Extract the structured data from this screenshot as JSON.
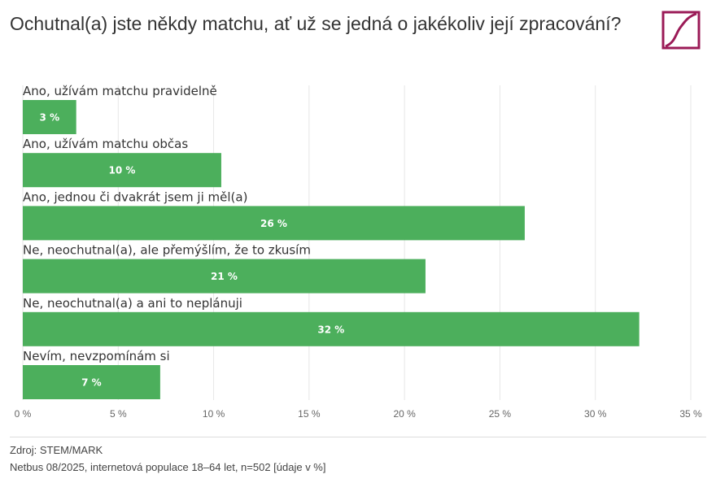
{
  "chart_data": {
    "type": "bar",
    "orientation": "horizontal",
    "title": "Ochutnal(a) jste někdy matchu, ať už se jedná o jakékoliv její zpracování?",
    "categories": [
      "Ano, užívám matchu pravidelně",
      "Ano, užívám matchu občas",
      "Ano, jednou či dvakrát jsem ji měl(a)",
      "Ne, neochutnal(a), ale přemýšlím, že to zkusím",
      "Ne, neochutnal(a) a ani to neplánuji",
      "Nevím, nevzpomínám si"
    ],
    "values": [
      2.8,
      10.4,
      26.3,
      21.1,
      32.3,
      7.2
    ],
    "data_labels": [
      "3 %",
      "10 %",
      "26 %",
      "21 %",
      "32 %",
      "7 %"
    ],
    "xlim": [
      0,
      35
    ],
    "xticks": [
      "0 %",
      "5 %",
      "10 %",
      "15 %",
      "20 %",
      "25 %",
      "30 %",
      "35 %"
    ],
    "grid": true,
    "bar_color": "#4caf5c",
    "xlabel": "",
    "ylabel": ""
  },
  "footer": {
    "source": "Zdroj: STEM/MARK",
    "note": "Netbus 08/2025, internetová populace 18–64 let, n=502 [údaje v %]"
  },
  "brand_color": "#9b1b57"
}
